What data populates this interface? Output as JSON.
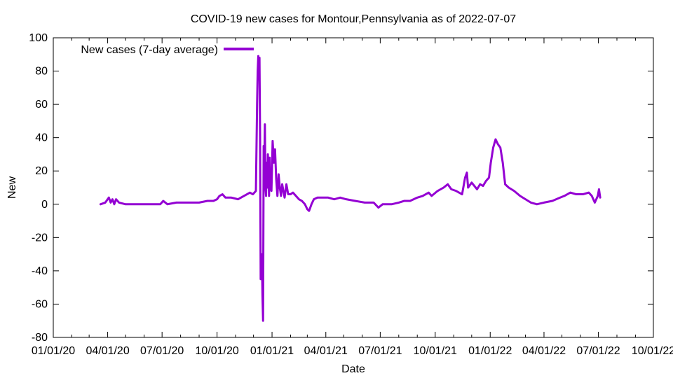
{
  "chart_data": {
    "type": "line",
    "title": "COVID-19 new cases for Montour,Pennsylvania as of 2022-07-07",
    "xlabel": "Date",
    "ylabel": "New",
    "xlim": [
      "2020-01-01",
      "2022-10-01"
    ],
    "ylim": [
      -80,
      100
    ],
    "x_ticks": [
      "01/01/20",
      "04/01/20",
      "07/01/20",
      "10/01/20",
      "01/01/21",
      "04/01/21",
      "07/01/21",
      "10/01/21",
      "01/01/22",
      "04/01/22",
      "07/01/22",
      "10/01/22"
    ],
    "y_ticks": [
      -80,
      -60,
      -40,
      -20,
      0,
      20,
      40,
      60,
      80,
      100
    ],
    "grid": false,
    "legend_position": "top-left",
    "series": [
      {
        "name": "New cases (7-day average)",
        "color": "#9400d3",
        "points": [
          [
            "2020-03-20",
            0
          ],
          [
            "2020-03-28",
            1
          ],
          [
            "2020-04-03",
            4
          ],
          [
            "2020-04-06",
            1
          ],
          [
            "2020-04-09",
            3
          ],
          [
            "2020-04-12",
            0
          ],
          [
            "2020-04-15",
            3
          ],
          [
            "2020-04-20",
            1
          ],
          [
            "2020-05-01",
            0
          ],
          [
            "2020-05-20",
            0
          ],
          [
            "2020-06-10",
            0
          ],
          [
            "2020-06-28",
            0
          ],
          [
            "2020-07-03",
            2
          ],
          [
            "2020-07-10",
            0
          ],
          [
            "2020-07-25",
            1
          ],
          [
            "2020-08-15",
            1
          ],
          [
            "2020-09-01",
            1
          ],
          [
            "2020-09-15",
            2
          ],
          [
            "2020-09-25",
            2
          ],
          [
            "2020-10-01",
            3
          ],
          [
            "2020-10-05",
            5
          ],
          [
            "2020-10-10",
            6
          ],
          [
            "2020-10-15",
            4
          ],
          [
            "2020-10-25",
            4
          ],
          [
            "2020-11-05",
            3
          ],
          [
            "2020-11-15",
            5
          ],
          [
            "2020-11-25",
            7
          ],
          [
            "2020-11-30",
            6
          ],
          [
            "2020-12-05",
            8
          ],
          [
            "2020-12-07",
            60
          ],
          [
            "2020-12-08",
            80
          ],
          [
            "2020-12-09",
            89
          ],
          [
            "2020-12-10",
            75
          ],
          [
            "2020-12-11",
            88
          ],
          [
            "2020-12-12",
            40
          ],
          [
            "2020-12-13",
            -45
          ],
          [
            "2020-12-14",
            -35
          ],
          [
            "2020-12-15",
            -30
          ],
          [
            "2020-12-16",
            -55
          ],
          [
            "2020-12-17",
            -70
          ],
          [
            "2020-12-18",
            35
          ],
          [
            "2020-12-19",
            20
          ],
          [
            "2020-12-20",
            48
          ],
          [
            "2020-12-21",
            10
          ],
          [
            "2020-12-22",
            5
          ],
          [
            "2020-12-23",
            25
          ],
          [
            "2020-12-24",
            10
          ],
          [
            "2020-12-25",
            30
          ],
          [
            "2020-12-26",
            20
          ],
          [
            "2020-12-27",
            5
          ],
          [
            "2020-12-28",
            28
          ],
          [
            "2020-12-29",
            10
          ],
          [
            "2020-12-31",
            8
          ],
          [
            "2021-01-02",
            38
          ],
          [
            "2021-01-04",
            25
          ],
          [
            "2021-01-06",
            33
          ],
          [
            "2021-01-08",
            15
          ],
          [
            "2021-01-10",
            5
          ],
          [
            "2021-01-12",
            18
          ],
          [
            "2021-01-14",
            10
          ],
          [
            "2021-01-16",
            5
          ],
          [
            "2021-01-18",
            12
          ],
          [
            "2021-01-20",
            8
          ],
          [
            "2021-01-22",
            4
          ],
          [
            "2021-01-25",
            12
          ],
          [
            "2021-01-28",
            6
          ],
          [
            "2021-02-01",
            6
          ],
          [
            "2021-02-05",
            7
          ],
          [
            "2021-02-10",
            5
          ],
          [
            "2021-02-15",
            3
          ],
          [
            "2021-02-20",
            2
          ],
          [
            "2021-02-25",
            0
          ],
          [
            "2021-03-01",
            -3
          ],
          [
            "2021-03-04",
            -4
          ],
          [
            "2021-03-08",
            0
          ],
          [
            "2021-03-12",
            3
          ],
          [
            "2021-03-18",
            4
          ],
          [
            "2021-03-25",
            4
          ],
          [
            "2021-04-05",
            4
          ],
          [
            "2021-04-15",
            3
          ],
          [
            "2021-04-25",
            4
          ],
          [
            "2021-05-05",
            3
          ],
          [
            "2021-05-20",
            2
          ],
          [
            "2021-06-05",
            1
          ],
          [
            "2021-06-20",
            1
          ],
          [
            "2021-06-28",
            -2
          ],
          [
            "2021-07-05",
            0
          ],
          [
            "2021-07-20",
            0
          ],
          [
            "2021-08-01",
            1
          ],
          [
            "2021-08-10",
            2
          ],
          [
            "2021-08-20",
            2
          ],
          [
            "2021-09-01",
            4
          ],
          [
            "2021-09-10",
            5
          ],
          [
            "2021-09-20",
            7
          ],
          [
            "2021-09-25",
            5
          ],
          [
            "2021-10-05",
            8
          ],
          [
            "2021-10-15",
            10
          ],
          [
            "2021-10-22",
            12
          ],
          [
            "2021-10-28",
            9
          ],
          [
            "2021-11-05",
            8
          ],
          [
            "2021-11-15",
            6
          ],
          [
            "2021-11-20",
            16
          ],
          [
            "2021-11-23",
            19
          ],
          [
            "2021-11-25",
            10
          ],
          [
            "2021-12-01",
            13
          ],
          [
            "2021-12-10",
            9
          ],
          [
            "2021-12-15",
            12
          ],
          [
            "2021-12-20",
            11
          ],
          [
            "2021-12-25",
            14
          ],
          [
            "2021-12-30",
            16
          ],
          [
            "2022-01-02",
            25
          ],
          [
            "2022-01-06",
            34
          ],
          [
            "2022-01-10",
            39
          ],
          [
            "2022-01-14",
            36
          ],
          [
            "2022-01-18",
            34
          ],
          [
            "2022-01-22",
            25
          ],
          [
            "2022-01-26",
            12
          ],
          [
            "2022-02-01",
            10
          ],
          [
            "2022-02-10",
            8
          ],
          [
            "2022-02-20",
            5
          ],
          [
            "2022-03-01",
            3
          ],
          [
            "2022-03-10",
            1
          ],
          [
            "2022-03-20",
            0
          ],
          [
            "2022-04-01",
            1
          ],
          [
            "2022-04-15",
            2
          ],
          [
            "2022-04-28",
            4
          ],
          [
            "2022-05-05",
            5
          ],
          [
            "2022-05-10",
            6
          ],
          [
            "2022-05-15",
            7
          ],
          [
            "2022-05-25",
            6
          ],
          [
            "2022-06-05",
            6
          ],
          [
            "2022-06-15",
            7
          ],
          [
            "2022-06-20",
            5
          ],
          [
            "2022-06-25",
            1
          ],
          [
            "2022-06-30",
            5
          ],
          [
            "2022-07-02",
            9
          ],
          [
            "2022-07-04",
            4
          ]
        ]
      }
    ]
  }
}
